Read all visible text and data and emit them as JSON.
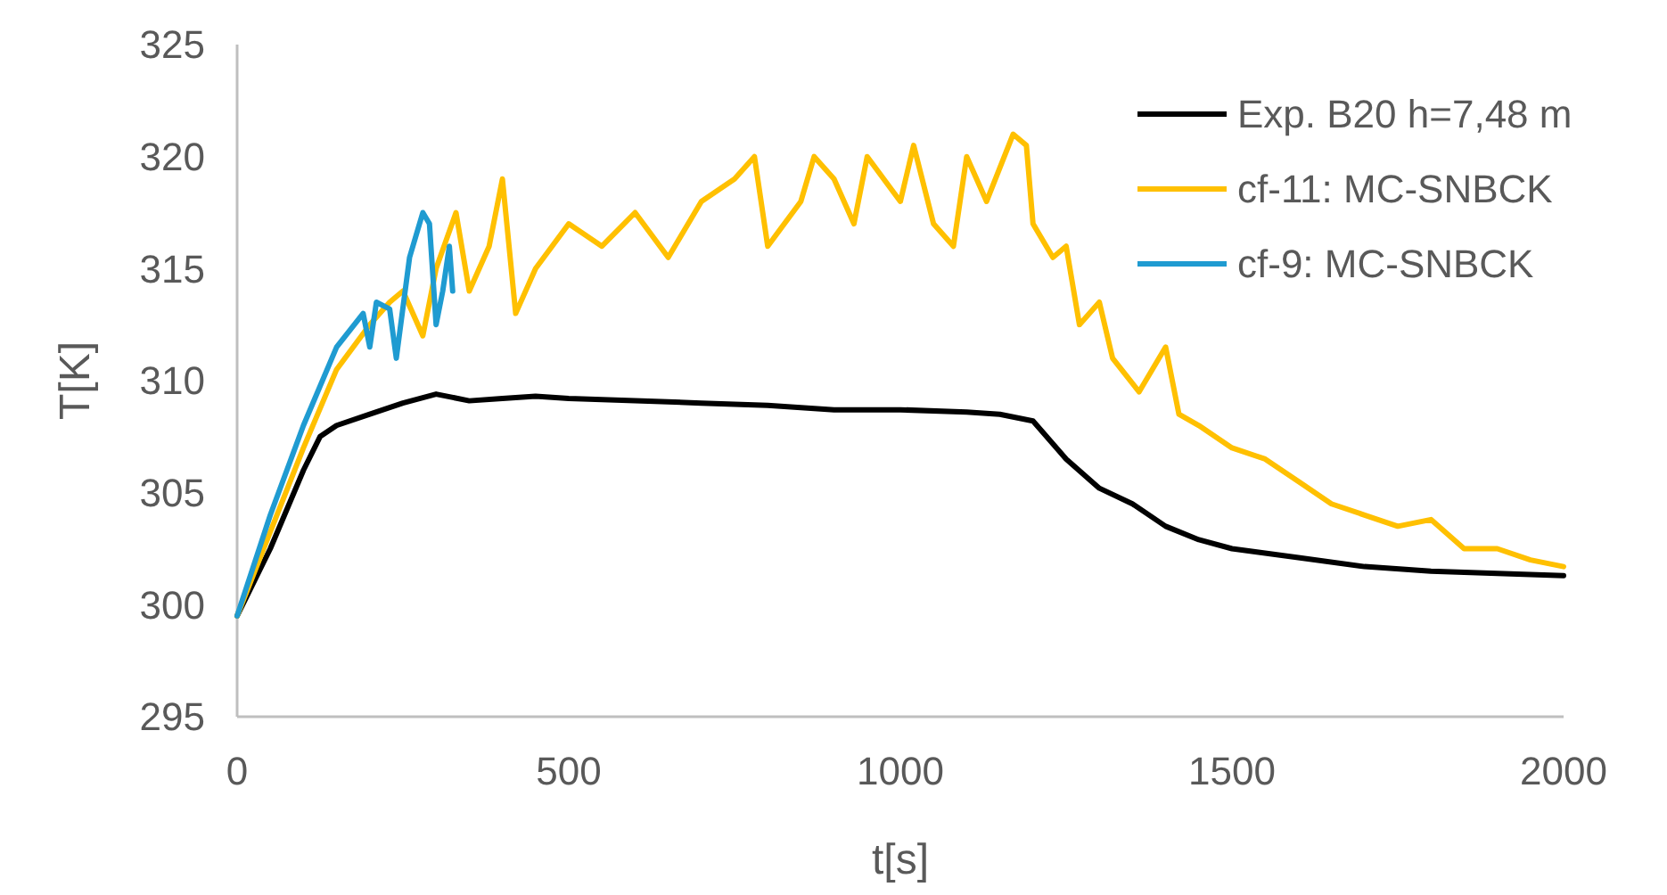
{
  "chart_data": {
    "type": "line",
    "xlabel": "t[s]",
    "ylabel": "T[K]",
    "xlim": [
      0,
      2000
    ],
    "ylim": [
      295,
      325
    ],
    "xticks": [
      0,
      500,
      1000,
      1500,
      2000
    ],
    "yticks": [
      295,
      300,
      305,
      310,
      315,
      320,
      325
    ],
    "grid": false,
    "legend": "top right",
    "marker": "none",
    "line_style": "solid",
    "series": [
      {
        "name": "Exp. B20  h=7,48 m",
        "color": "#000000",
        "x": [
          0,
          50,
          100,
          125,
          150,
          200,
          250,
          300,
          350,
          400,
          450,
          500,
          600,
          700,
          800,
          900,
          1000,
          1100,
          1150,
          1200,
          1250,
          1300,
          1350,
          1400,
          1450,
          1500,
          1600,
          1700,
          1800,
          1900,
          2000
        ],
        "values": [
          299.5,
          302.5,
          306,
          307.5,
          308,
          308.5,
          309,
          309.4,
          309.1,
          309.2,
          309.3,
          309.2,
          309.1,
          309,
          308.9,
          308.7,
          308.7,
          308.6,
          308.5,
          308.2,
          306.5,
          305.2,
          304.5,
          303.5,
          302.9,
          302.5,
          302.1,
          301.7,
          301.5,
          301.4,
          301.3
        ]
      },
      {
        "name": "cf-11: MC-SNBCK",
        "color": "#ffc000",
        "x": [
          0,
          100,
          150,
          200,
          230,
          250,
          280,
          300,
          330,
          350,
          380,
          400,
          420,
          450,
          500,
          550,
          600,
          650,
          700,
          750,
          780,
          800,
          850,
          870,
          900,
          930,
          950,
          1000,
          1020,
          1050,
          1080,
          1100,
          1130,
          1170,
          1190,
          1200,
          1230,
          1250,
          1270,
          1300,
          1320,
          1360,
          1400,
          1420,
          1450,
          1500,
          1550,
          1600,
          1650,
          1700,
          1750,
          1800,
          1850,
          1900,
          1950,
          2000
        ],
        "values": [
          299.5,
          307,
          310.5,
          312.5,
          313.5,
          314,
          312,
          315,
          317.5,
          314,
          316,
          319,
          313,
          315,
          317,
          316,
          317.5,
          315.5,
          318,
          319,
          320,
          316,
          318,
          320,
          319,
          317,
          320,
          318,
          320.5,
          317,
          316,
          320,
          318,
          321,
          320.5,
          317,
          315.5,
          316,
          312.5,
          313.5,
          311,
          309.5,
          311.5,
          308.5,
          308,
          307,
          306.5,
          305.5,
          304.5,
          304,
          303.5,
          303.8,
          302.5,
          302.5,
          302,
          301.7
        ]
      },
      {
        "name": "cf-9: MC-SNBCK",
        "color": "#1f9bd1",
        "x": [
          0,
          50,
          100,
          150,
          190,
          200,
          210,
          230,
          240,
          260,
          280,
          290,
          300,
          310,
          320,
          325
        ],
        "values": [
          299.5,
          304,
          308,
          311.5,
          313,
          311.5,
          313.5,
          313.2,
          311,
          315.5,
          317.5,
          317,
          312.5,
          314,
          316,
          314
        ]
      }
    ]
  }
}
